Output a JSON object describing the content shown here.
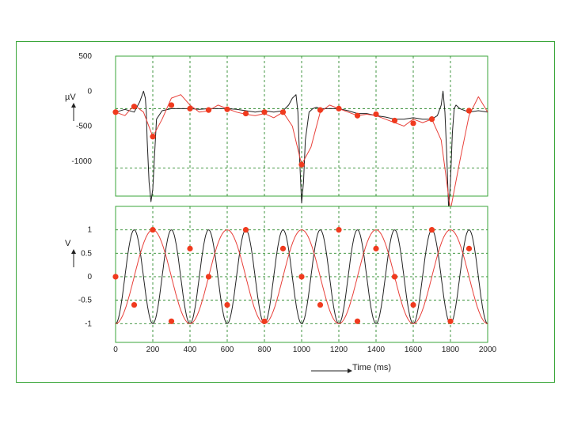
{
  "colors": {
    "frame_border": "#3aa63a",
    "plot_border": "#3aa63a",
    "grid": "#2e8b2e",
    "trace_black": "#222222",
    "trace_red": "#e8403a",
    "marker": "#f03a1e"
  },
  "xlabel": "Time (ms)",
  "chart_data": [
    {
      "type": "line",
      "title": "",
      "ylabel": "µV",
      "yticks": [
        "500",
        "0",
        "-500",
        "-1000"
      ],
      "yticks_values": [
        500,
        0,
        -500,
        -1000
      ],
      "xlim": [
        0,
        2000
      ],
      "ylim": [
        500,
        -1500
      ],
      "hgrid": [
        -250,
        -1100
      ],
      "grid": true,
      "series": [
        {
          "color": "black",
          "x": [
            0,
            50,
            100,
            130,
            150,
            160,
            165,
            170,
            180,
            190,
            200,
            210,
            220,
            250,
            300,
            350,
            400,
            450,
            500,
            550,
            600,
            650,
            700,
            750,
            800,
            850,
            900,
            930,
            950,
            970,
            980,
            990,
            1000,
            1010,
            1020,
            1040,
            1060,
            1080,
            1100,
            1150,
            1200,
            1250,
            1300,
            1350,
            1400,
            1450,
            1500,
            1550,
            1600,
            1650,
            1700,
            1730,
            1750,
            1760,
            1770,
            1780,
            1790,
            1800,
            1810,
            1820,
            1830,
            1850,
            1900,
            1950,
            2000
          ],
          "y": [
            -300,
            -260,
            -300,
            -150,
            0,
            -100,
            -300,
            -700,
            -1300,
            -1580,
            -1400,
            -900,
            -400,
            -280,
            -250,
            -250,
            -250,
            -260,
            -250,
            -250,
            -250,
            -260,
            -280,
            -300,
            -280,
            -300,
            -280,
            -200,
            -100,
            -50,
            -300,
            -1000,
            -1600,
            -1300,
            -700,
            -300,
            -250,
            -230,
            -250,
            -250,
            -250,
            -280,
            -320,
            -320,
            -350,
            -370,
            -400,
            -400,
            -380,
            -400,
            -400,
            -350,
            -200,
            0,
            -300,
            -900,
            -1700,
            -1300,
            -600,
            -250,
            -200,
            -250,
            -300,
            -280,
            -300
          ]
        },
        {
          "color": "red",
          "x": [
            0,
            50,
            100,
            150,
            200,
            250,
            300,
            350,
            400,
            450,
            500,
            550,
            600,
            650,
            700,
            750,
            800,
            850,
            900,
            950,
            1000,
            1050,
            1100,
            1150,
            1200,
            1250,
            1300,
            1350,
            1400,
            1450,
            1500,
            1550,
            1600,
            1650,
            1700,
            1750,
            1800,
            1850,
            1900,
            1950,
            2000
          ],
          "y": [
            -300,
            -350,
            -200,
            -300,
            -650,
            -400,
            -100,
            -50,
            -200,
            -300,
            -280,
            -200,
            -250,
            -300,
            -330,
            -350,
            -320,
            -380,
            -300,
            -500,
            -1050,
            -800,
            -300,
            -200,
            -250,
            -300,
            -350,
            -330,
            -350,
            -400,
            -450,
            -500,
            -400,
            -450,
            -400,
            -700,
            -1700,
            -1000,
            -350,
            -80,
            -300
          ]
        },
        {
          "color": "red-markers",
          "x": [
            0,
            100,
            200,
            300,
            400,
            500,
            600,
            700,
            800,
            900,
            1000,
            1100,
            1200,
            1300,
            1400,
            1500,
            1600,
            1700,
            1800,
            1900
          ],
          "y": [
            -300,
            -220,
            -650,
            -200,
            -250,
            -270,
            -260,
            -320,
            -300,
            -300,
            -1050,
            -270,
            -250,
            -350,
            -330,
            -420,
            -460,
            -400,
            -1700,
            -280
          ]
        }
      ]
    },
    {
      "type": "line",
      "title": "",
      "ylabel": "V",
      "yticks": [
        "1",
        "0.5",
        "0",
        "-0.5",
        "-1"
      ],
      "yticks_values": [
        1,
        0.5,
        0,
        -0.5,
        -1
      ],
      "xticks": [
        "0",
        "200",
        "400",
        "600",
        "800",
        "1000",
        "1200",
        "1400",
        "1600",
        "1800",
        "2000"
      ],
      "xticks_values": [
        0,
        200,
        400,
        600,
        800,
        1000,
        1200,
        1400,
        1600,
        1800,
        2000
      ],
      "xlim": [
        0,
        2000
      ],
      "ylim": [
        1.5,
        -1.4
      ],
      "hgrid": [
        1,
        0.5,
        0,
        -0.5,
        -1
      ],
      "grid": true,
      "series": [
        {
          "color": "black",
          "function": "sine",
          "amplitude": 1,
          "period_ms": 200,
          "phase_ms": 150
        },
        {
          "color": "red",
          "function": "sine",
          "amplitude": 1,
          "period_ms": 400,
          "phase_ms": 300
        },
        {
          "color": "red-markers",
          "x": [
            0,
            100,
            200,
            300,
            400,
            500,
            600,
            700,
            800,
            900,
            1000,
            1100,
            1200,
            1300,
            1400,
            1500,
            1600,
            1700,
            1800,
            1900
          ],
          "y": [
            0,
            -0.6,
            1,
            -0.95,
            0.6,
            0,
            -0.6,
            1,
            -0.95,
            0.6,
            0,
            -0.6,
            1,
            -0.95,
            0.6,
            0,
            -0.6,
            1,
            -0.95,
            0.6
          ]
        }
      ]
    }
  ]
}
